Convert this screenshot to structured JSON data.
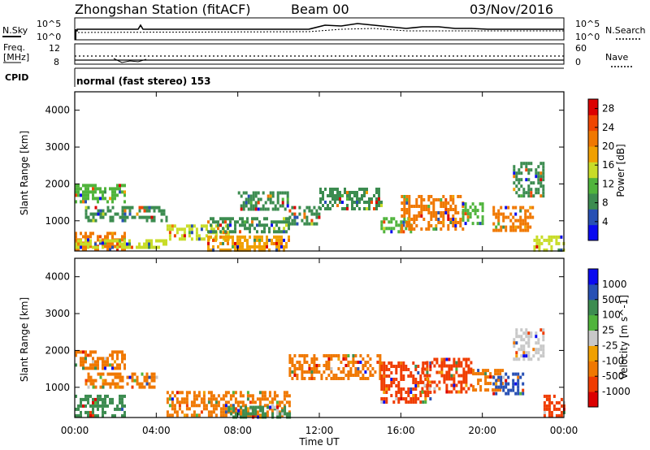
{
  "header": {
    "title": "Zhongshan Station (fitACF)",
    "beam": "Beam 00",
    "date": "03/Nov/2016"
  },
  "noise_panel": {
    "left_label": "N.Sky",
    "right_label": "N.Search",
    "left_ticks": [
      "10^5",
      "10^0"
    ],
    "right_ticks": [
      "10^5",
      "10^0"
    ]
  },
  "freq_panel": {
    "left_label_line1": "Freq.",
    "left_label_line2": "[MHz]",
    "left_ticks": [
      "12",
      "8"
    ],
    "right_label": "Nave",
    "right_ticks": [
      "60",
      "0"
    ]
  },
  "cpid": {
    "label": "CPID",
    "mode_text": "normal (fast stereo) 153"
  },
  "x_axis": {
    "title": "Time UT",
    "tick_labels": [
      "00:00",
      "04:00",
      "08:00",
      "12:00",
      "16:00",
      "20:00",
      "00:00"
    ]
  },
  "colors": {
    "power_scale": [
      "#0a0af0",
      "#2850b4",
      "#3c8c50",
      "#50b43c",
      "#c8dc28",
      "#f0a000",
      "#f07800",
      "#f04600",
      "#dc0000"
    ],
    "velocity_scale": [
      "#dc0000",
      "#f03c00",
      "#f07800",
      "#f0a000",
      "#c8c8c8",
      "#50b43c",
      "#3c8c50",
      "#2850b4",
      "#0a0af0"
    ]
  },
  "chart_data": [
    {
      "type": "heatmap",
      "title": "Power",
      "xlabel": "",
      "ylabel": "Slant Range [km]",
      "xlim": [
        0,
        24
      ],
      "ylim": [
        180,
        4500
      ],
      "x_ticks": [
        0,
        4,
        8,
        12,
        16,
        20,
        24
      ],
      "y_ticks": [
        1000,
        2000,
        3000,
        4000
      ],
      "y_tick_labels": [
        "1000",
        "2000",
        "3000",
        "4000"
      ],
      "colorbar": {
        "label": "Power [dB]",
        "range": [
          0,
          30
        ],
        "tick_values": [
          4,
          8,
          12,
          16,
          20,
          24,
          28
        ],
        "tick_labels": [
          "4",
          "8",
          "12",
          "16",
          "20",
          "24",
          "28"
        ]
      },
      "regions": [
        {
          "t0": 0.0,
          "t1": 2.5,
          "r0": 200,
          "r1": 700,
          "value": 22
        },
        {
          "t0": 0.0,
          "t1": 4.5,
          "r0": 300,
          "r1": 500,
          "value": 14
        },
        {
          "t0": 0.5,
          "t1": 4.5,
          "r0": 1000,
          "r1": 1400,
          "value": 8
        },
        {
          "t0": 0.0,
          "t1": 2.5,
          "r0": 1500,
          "r1": 2000,
          "value": 10
        },
        {
          "t0": 4.5,
          "t1": 7.5,
          "r0": 500,
          "r1": 900,
          "value": 16
        },
        {
          "t0": 6.5,
          "t1": 10.5,
          "r0": 200,
          "r1": 600,
          "value": 18
        },
        {
          "t0": 6.5,
          "t1": 10.5,
          "r0": 700,
          "r1": 1100,
          "value": 8
        },
        {
          "t0": 8.0,
          "t1": 10.5,
          "r0": 1300,
          "r1": 1800,
          "value": 9
        },
        {
          "t0": 10.5,
          "t1": 12.0,
          "r0": 900,
          "r1": 1400,
          "value": 8
        },
        {
          "t0": 12.0,
          "t1": 15.0,
          "r0": 1300,
          "r1": 1900,
          "value": 9
        },
        {
          "t0": 15.0,
          "t1": 16.5,
          "r0": 700,
          "r1": 1100,
          "value": 10
        },
        {
          "t0": 16.0,
          "t1": 19.0,
          "r0": 800,
          "r1": 1700,
          "value": 20
        },
        {
          "t0": 19.0,
          "t1": 20.0,
          "r0": 900,
          "r1": 1500,
          "value": 10
        },
        {
          "t0": 20.5,
          "t1": 22.5,
          "r0": 700,
          "r1": 1400,
          "value": 22
        },
        {
          "t0": 21.5,
          "t1": 23.0,
          "r0": 1700,
          "r1": 2600,
          "value": 8
        },
        {
          "t0": 22.5,
          "t1": 24.0,
          "r0": 200,
          "r1": 600,
          "value": 14
        }
      ]
    },
    {
      "type": "heatmap",
      "title": "Velocity",
      "xlabel": "Time UT",
      "ylabel": "Slant Range [km]",
      "xlim": [
        0,
        24
      ],
      "ylim": [
        180,
        4500
      ],
      "x_ticks": [
        0,
        4,
        8,
        12,
        16,
        20,
        24
      ],
      "y_ticks": [
        1000,
        2000,
        3000,
        4000
      ],
      "y_tick_labels": [
        "1000",
        "2000",
        "3000",
        "4000"
      ],
      "colorbar": {
        "label": "Velocity [m s^-1]",
        "tick_labels": [
          "-1000",
          "-500",
          "-100",
          "-25",
          "25",
          "100",
          "500",
          "1000"
        ]
      },
      "regions": [
        {
          "t0": 0.0,
          "t1": 2.5,
          "r0": 200,
          "r1": 800,
          "value": 200
        },
        {
          "t0": 0.5,
          "t1": 4.0,
          "r0": 1000,
          "r1": 1400,
          "value": -100
        },
        {
          "t0": 0.0,
          "t1": 2.5,
          "r0": 1500,
          "r1": 2000,
          "value": -300
        },
        {
          "t0": 4.5,
          "t1": 10.5,
          "r0": 200,
          "r1": 900,
          "value": -300
        },
        {
          "t0": 7.5,
          "t1": 10.5,
          "r0": 200,
          "r1": 500,
          "value": 150
        },
        {
          "t0": 10.5,
          "t1": 15.0,
          "r0": 1200,
          "r1": 1900,
          "value": -400
        },
        {
          "t0": 15.0,
          "t1": 17.5,
          "r0": 600,
          "r1": 1700,
          "value": -500
        },
        {
          "t0": 17.0,
          "t1": 19.5,
          "r0": 900,
          "r1": 1800,
          "value": -700
        },
        {
          "t0": 19.5,
          "t1": 21.0,
          "r0": 900,
          "r1": 1500,
          "value": -400
        },
        {
          "t0": 20.5,
          "t1": 22.0,
          "r0": 800,
          "r1": 1400,
          "value": 600
        },
        {
          "t0": 21.5,
          "t1": 23.0,
          "r0": 1800,
          "r1": 2600,
          "value": 0
        },
        {
          "t0": 23.0,
          "t1": 24.0,
          "r0": 200,
          "r1": 800,
          "value": -600
        }
      ]
    }
  ]
}
